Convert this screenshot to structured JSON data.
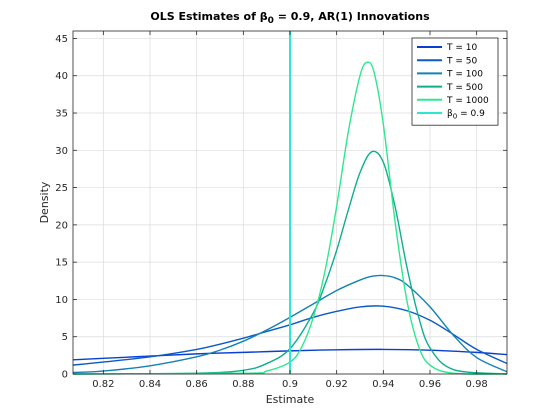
{
  "chart_data": {
    "type": "line",
    "title": "OLS Estimates of β",
    "title_sub": "0",
    "title_rest": " = 0.9, AR(1) Innovations",
    "xlabel": "Estimate",
    "ylabel": "Density",
    "xlim": [
      0.807,
      0.993
    ],
    "ylim": [
      0,
      46
    ],
    "grid": true,
    "legend_position": "top-right",
    "x_ticks": [
      {
        "value": 0.82,
        "label": "0.82"
      },
      {
        "value": 0.84,
        "label": "0.84"
      },
      {
        "value": 0.86,
        "label": "0.86"
      },
      {
        "value": 0.88,
        "label": "0.88"
      },
      {
        "value": 0.9,
        "label": "0.9"
      },
      {
        "value": 0.92,
        "label": "0.92"
      },
      {
        "value": 0.94,
        "label": "0.94"
      },
      {
        "value": 0.96,
        "label": "0.96"
      },
      {
        "value": 0.98,
        "label": "0.98"
      }
    ],
    "y_ticks": [
      {
        "value": 0,
        "label": "0"
      },
      {
        "value": 5,
        "label": "5"
      },
      {
        "value": 10,
        "label": "10"
      },
      {
        "value": 15,
        "label": "15"
      },
      {
        "value": 20,
        "label": "20"
      },
      {
        "value": 25,
        "label": "25"
      },
      {
        "value": 30,
        "label": "30"
      },
      {
        "value": 35,
        "label": "35"
      },
      {
        "value": 40,
        "label": "40"
      },
      {
        "value": 45,
        "label": "45"
      }
    ],
    "series": [
      {
        "name": "T = 10",
        "color": "#0a3fd6",
        "x": [
          0.807,
          0.82,
          0.84,
          0.86,
          0.88,
          0.9,
          0.92,
          0.94,
          0.96,
          0.98,
          0.993
        ],
        "y": [
          1.9,
          2.1,
          2.4,
          2.7,
          2.9,
          3.1,
          3.25,
          3.3,
          3.2,
          2.9,
          2.6
        ]
      },
      {
        "name": "T = 50",
        "color": "#0a5bc4",
        "x": [
          0.807,
          0.82,
          0.84,
          0.86,
          0.87,
          0.88,
          0.89,
          0.9,
          0.91,
          0.92,
          0.93,
          0.94,
          0.95,
          0.96,
          0.97,
          0.98,
          0.993
        ],
        "y": [
          1.2,
          1.6,
          2.3,
          3.3,
          4.0,
          4.8,
          5.7,
          6.6,
          7.6,
          8.4,
          9.0,
          9.1,
          8.5,
          7.2,
          5.3,
          3.3,
          1.4
        ]
      },
      {
        "name": "T = 100",
        "color": "#1382b3",
        "x": [
          0.807,
          0.82,
          0.84,
          0.86,
          0.87,
          0.88,
          0.89,
          0.9,
          0.91,
          0.92,
          0.93,
          0.935,
          0.94,
          0.945,
          0.95,
          0.96,
          0.97,
          0.98,
          0.993
        ],
        "y": [
          0.2,
          0.4,
          1.1,
          2.3,
          3.2,
          4.4,
          5.9,
          7.6,
          9.4,
          11.2,
          12.6,
          13.1,
          13.2,
          12.9,
          12.0,
          9.0,
          5.2,
          2.2,
          0.3
        ]
      },
      {
        "name": "T = 500",
        "color": "#0fae8e",
        "x": [
          0.807,
          0.86,
          0.88,
          0.89,
          0.9,
          0.91,
          0.915,
          0.92,
          0.925,
          0.93,
          0.935,
          0.94,
          0.945,
          0.95,
          0.955,
          0.96,
          0.97,
          0.993
        ],
        "y": [
          0,
          0.1,
          0.5,
          1.4,
          3.4,
          8.2,
          12.0,
          16.6,
          22.0,
          27.0,
          29.8,
          28.4,
          22.5,
          14.5,
          7.8,
          3.5,
          0.6,
          0
        ]
      },
      {
        "name": "T = 1000",
        "color": "#2ee88f",
        "x": [
          0.807,
          0.88,
          0.89,
          0.9,
          0.905,
          0.91,
          0.915,
          0.92,
          0.925,
          0.93,
          0.933,
          0.936,
          0.94,
          0.945,
          0.95,
          0.955,
          0.96,
          0.97,
          0.993
        ],
        "y": [
          0,
          0.1,
          0.4,
          1.6,
          3.6,
          7.6,
          13.8,
          22.5,
          32.5,
          40.0,
          41.8,
          40.5,
          33.5,
          20.5,
          10.0,
          3.8,
          1.2,
          0.1,
          0
        ]
      },
      {
        "name": "β0 = 0.9",
        "legend_label": "β",
        "legend_sub": "0",
        "legend_rest": " = 0.9",
        "color": "#2fe6d2",
        "vertical_line": 0.9
      }
    ]
  }
}
